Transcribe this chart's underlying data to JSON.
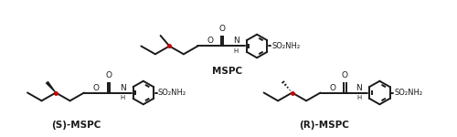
{
  "bg_color": "#ffffff",
  "bond_color": "#1a1a1a",
  "stereo_dot_color": "#cc0000",
  "label_mspc": "MSPC",
  "label_s_mspc": "(S)-MSPC",
  "label_r_mspc": "(R)-MSPC",
  "fig_width": 5.0,
  "fig_height": 1.5,
  "dpi": 100,
  "lw": 1.4,
  "font_size_label": 7.0,
  "font_size_atom": 6.5,
  "font_size_subscript": 5.0
}
